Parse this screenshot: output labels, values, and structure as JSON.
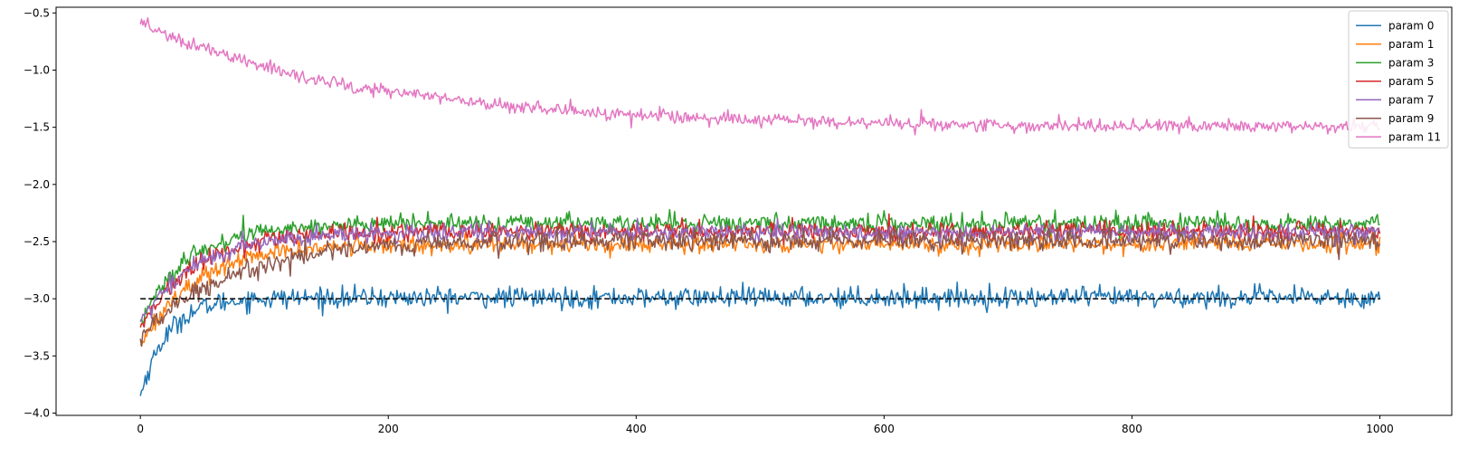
{
  "chart_data": {
    "type": "line",
    "xlim": [
      -68,
      1058
    ],
    "ylim": [
      -4.02,
      -0.45
    ],
    "xticks": [
      0,
      200,
      400,
      600,
      800,
      1000
    ],
    "xtick_labels": [
      "0",
      "200",
      "400",
      "600",
      "800",
      "1000"
    ],
    "yticks": [
      -4.0,
      -3.5,
      -3.0,
      -2.5,
      -2.0,
      -1.5,
      -1.0,
      -0.5
    ],
    "ytick_labels": [
      "−4.0",
      "−3.5",
      "−3.0",
      "−2.5",
      "−2.0",
      "−1.5",
      "−1.0",
      "−0.5"
    ],
    "grid": false,
    "legend_position": "top-right",
    "n_points": 1001,
    "reference_line": {
      "y": -3.0,
      "x_range": [
        0,
        1000
      ],
      "style": "dashed",
      "color": "#000000"
    },
    "series": [
      {
        "name": "param 0",
        "color": "#1f77b4",
        "start": -3.85,
        "plateau": -2.99,
        "tau": 22,
        "noise": 0.045
      },
      {
        "name": "param 1",
        "color": "#ff7f0e",
        "start": -3.4,
        "plateau": -2.52,
        "tau": 45,
        "noise": 0.04
      },
      {
        "name": "param 3",
        "color": "#2ca02c",
        "start": -3.2,
        "plateau": -2.34,
        "tau": 40,
        "noise": 0.04
      },
      {
        "name": "param 5",
        "color": "#d62728",
        "start": -3.25,
        "plateau": -2.41,
        "tau": 45,
        "noise": 0.04
      },
      {
        "name": "param 7",
        "color": "#9467bd",
        "start": -3.2,
        "plateau": -2.42,
        "tau": 45,
        "noise": 0.04
      },
      {
        "name": "param 9",
        "color": "#8c564b",
        "start": -3.35,
        "plateau": -2.49,
        "tau": 70,
        "noise": 0.045
      },
      {
        "name": "param 11",
        "color": "#e377c2",
        "start": -0.6,
        "plateau": -1.5,
        "tau": 190,
        "noise": 0.03
      }
    ]
  }
}
